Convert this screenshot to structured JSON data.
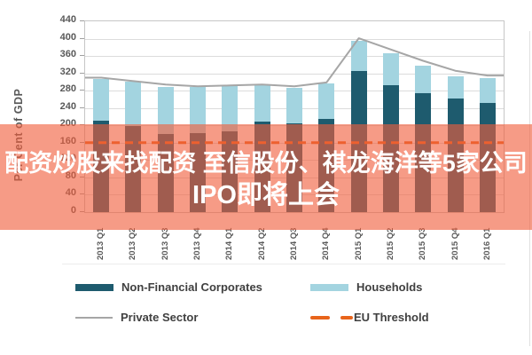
{
  "page": {
    "background": "#FFFFFF"
  },
  "overlay": {
    "line1": "配资炒股来找配资 至信股份、祺龙海洋等5家公司",
    "line2": "IPO即将上会",
    "text_color": "#FFFFFF",
    "band_color_rgba": "rgba(240,93,60,0.62)"
  },
  "chart_data": {
    "type": "bar",
    "subtype": "stacked-bars-with-overlaid-lines",
    "title": "",
    "xlabel": "",
    "ylabel": "Per Cent of GDP",
    "ylim": [
      0,
      440
    ],
    "ytick_step": 40,
    "grid": true,
    "legend_position": "bottom",
    "categories": [
      "2013 Q1",
      "2013 Q2",
      "2013 Q3",
      "2013 Q4",
      "2014 Q1",
      "2014 Q2",
      "2014 Q3",
      "2014 Q4",
      "2015 Q1",
      "2015 Q2",
      "2015 Q3",
      "2015 Q4",
      "2016 Q1"
    ],
    "series": [
      {
        "name": "Non-Financial Corporates",
        "type": "bar",
        "stack_order": 1,
        "color": "#1E5B6E",
        "values": [
          211,
          198,
          181,
          183,
          186,
          209,
          204,
          214,
          326,
          293,
          274,
          262,
          251
        ]
      },
      {
        "name": "Households",
        "type": "bar",
        "stack_order": 2,
        "color": "#A3D4E0",
        "values": [
          97,
          102,
          107,
          105,
          105,
          84,
          83,
          82,
          70,
          73,
          63,
          52,
          58
        ]
      },
      {
        "name": "Private Sector",
        "type": "line",
        "color": "#A6A6A6",
        "values": [
          310,
          302,
          294,
          290,
          292,
          294,
          290,
          299,
          401,
          375,
          349,
          326,
          315
        ]
      },
      {
        "name": "EU Threshold",
        "type": "dashed-line",
        "color": "#E8641B",
        "value": 160
      }
    ]
  }
}
